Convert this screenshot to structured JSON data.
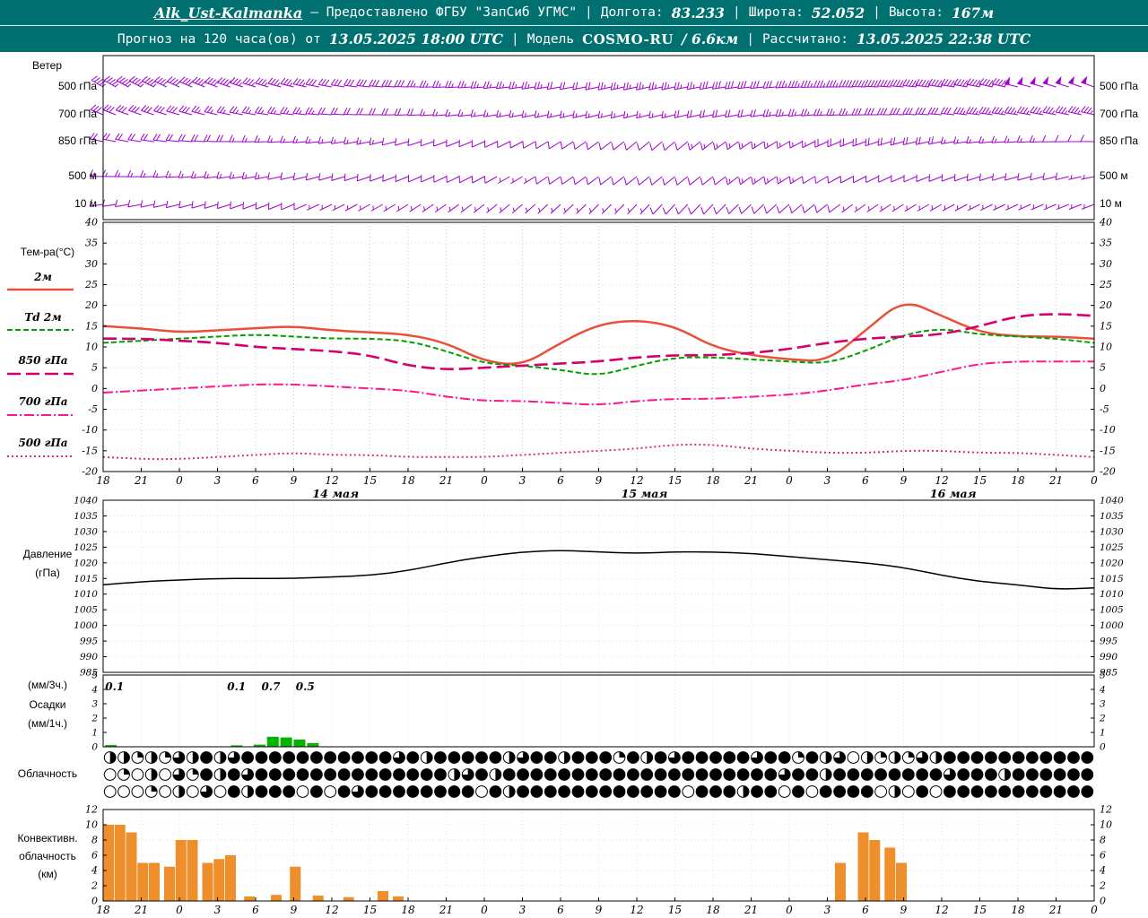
{
  "header": {
    "station": "Alk_Ust-Kalmanka",
    "provider": "— Предоставлено ФГБУ \"ЗапСиб УГМС\"",
    "sep": "|",
    "lon_label": "Долгота:",
    "lon_value": "83.233",
    "lat_label": "Широта:",
    "lat_value": "52.052",
    "alt_label": "Высота:",
    "alt_value": "167м",
    "forecast_label": "Прогноз на 120 часа(ов) от",
    "forecast_time": "13.05.2025 18:00 UTC",
    "model_label": "Модель",
    "model_name": "COSMO-RU",
    "model_res": "/ 6.6км",
    "calc_label": "Рассчитано:",
    "calc_time": "13.05.2025 22:38 UTC"
  },
  "panels": {
    "wind": {
      "title": "Ветер"
    },
    "temp": {
      "title": "Тем-ра(°C)"
    },
    "pressure": {
      "title": "Давление",
      "unit": "(гПа)"
    },
    "precip": {
      "note_3h": "(мм/3ч.)",
      "title": "Осадки",
      "note_1h": "(мм/1ч.)"
    },
    "cloud": {
      "title": "Облачность"
    },
    "convective": {
      "title_1": "Конвективн.",
      "title_2": "облачность",
      "unit": "(км)"
    }
  },
  "chart_data": [
    {
      "id": "wind",
      "type": "wind-barbs",
      "color": "#A000D0",
      "x_step_hours": 3,
      "rows": [
        {
          "level": "500 гПа",
          "dirs": [
            300,
            297,
            294,
            290,
            287,
            284,
            280,
            276,
            272,
            268,
            265,
            262,
            260,
            258,
            257,
            258,
            260,
            263,
            266,
            269,
            272,
            275,
            278,
            281,
            284,
            287,
            290
          ],
          "speeds": [
            45,
            45,
            40,
            40,
            35,
            35,
            30,
            30,
            28,
            26,
            25,
            24,
            22,
            22,
            24,
            26,
            28,
            30,
            33,
            36,
            40,
            42,
            44,
            46,
            48,
            50,
            50
          ]
        },
        {
          "level": "700 гПа",
          "dirs": [
            292,
            289,
            286,
            283,
            280,
            277,
            274,
            271,
            268,
            265,
            262,
            259,
            257,
            256,
            255,
            256,
            258,
            260,
            263,
            266,
            269,
            272,
            275,
            277,
            279,
            281,
            283
          ],
          "speeds": [
            32,
            30,
            28,
            27,
            25,
            24,
            22,
            20,
            18,
            17,
            16,
            15,
            14,
            14,
            15,
            17,
            19,
            21,
            24,
            26,
            28,
            30,
            32,
            33,
            34,
            35,
            35
          ]
        },
        {
          "level": "850 гПа",
          "dirs": [
            282,
            279,
            276,
            272,
            269,
            266,
            262,
            258,
            254,
            250,
            246,
            242,
            238,
            234,
            231,
            230,
            232,
            236,
            240,
            245,
            250,
            255,
            259,
            263,
            266,
            269,
            271
          ],
          "speeds": [
            22,
            21,
            20,
            18,
            17,
            16,
            14,
            13,
            12,
            10,
            9,
            8,
            8,
            9,
            10,
            12,
            13,
            15,
            16,
            18,
            19,
            20,
            18,
            16,
            14,
            12,
            11
          ]
        },
        {
          "level": "500 м",
          "dirs": [
            272,
            269,
            266,
            263,
            260,
            257,
            254,
            251,
            248,
            245,
            242,
            239,
            236,
            234,
            232,
            231,
            232,
            234,
            237,
            240,
            243,
            246,
            249,
            252,
            254,
            256,
            258
          ],
          "speeds": [
            16,
            15,
            15,
            14,
            13,
            12,
            11,
            10,
            9,
            8,
            8,
            7,
            8,
            9,
            10,
            11,
            12,
            13,
            13,
            12,
            11,
            10,
            9,
            9,
            8,
            8,
            7
          ]
        },
        {
          "level": "10 м",
          "dirs": [
            262,
            259,
            256,
            253,
            250,
            247,
            244,
            241,
            238,
            235,
            232,
            229,
            227,
            225,
            224,
            223,
            224,
            226,
            229,
            232,
            235,
            238,
            241,
            243,
            245,
            247,
            249
          ],
          "speeds": [
            10,
            10,
            9,
            9,
            8,
            8,
            7,
            7,
            6,
            6,
            5,
            5,
            5,
            6,
            7,
            8,
            8,
            9,
            9,
            8,
            7,
            7,
            6,
            6,
            5,
            5,
            5
          ]
        }
      ]
    },
    {
      "id": "temp",
      "type": "line",
      "ylim": [
        -20,
        40
      ],
      "ystep": 5,
      "x_labels": [
        "18",
        "21",
        "0",
        "3",
        "6",
        "9",
        "12",
        "15",
        "18",
        "21",
        "0",
        "3",
        "6",
        "9",
        "12",
        "15",
        "18",
        "21",
        "0",
        "3",
        "6",
        "9",
        "12",
        "15",
        "18",
        "21",
        "0"
      ],
      "day_labels": [
        {
          "text": "14 мая",
          "slot": 6.1
        },
        {
          "text": "15 мая",
          "slot": 14.2
        },
        {
          "text": "16 мая",
          "slot": 22.3
        }
      ],
      "series": [
        {
          "name": "2м",
          "color": "#E8503A",
          "width": 2.5,
          "dash": "",
          "values": [
            15,
            14.5,
            13.5,
            14,
            14.5,
            15,
            14,
            13.5,
            13,
            11,
            6.5,
            5.5,
            11,
            15.5,
            16.5,
            15,
            10,
            8,
            7,
            6.5,
            14,
            21.5,
            17.5,
            13.5,
            12.5,
            12.5,
            12
          ]
        },
        {
          "name": "Td 2м",
          "color": "#00A000",
          "width": 2,
          "dash": "6,3",
          "values": [
            11,
            11.5,
            12,
            12.5,
            13,
            12.5,
            12,
            12,
            11.5,
            9,
            6,
            5.5,
            4.5,
            3,
            5.5,
            7.5,
            7.5,
            7,
            6.5,
            6,
            9,
            13,
            14.5,
            13,
            12.5,
            12,
            11
          ]
        },
        {
          "name": "850 гПа",
          "color": "#D4006E",
          "width": 2.6,
          "dash": "15,6",
          "values": [
            12,
            12,
            11.5,
            11,
            10,
            9.5,
            9,
            8,
            5.5,
            4.5,
            5,
            5.5,
            6,
            6.5,
            7.5,
            8,
            8,
            8.5,
            9.5,
            11,
            12,
            12.5,
            13,
            15,
            17.5,
            18,
            17.5
          ]
        },
        {
          "name": "700 гПа",
          "color": "#FF1493",
          "width": 2,
          "dash": "11,3,2,3",
          "values": [
            -1,
            -0.5,
            0,
            0.5,
            1,
            1,
            0.5,
            0,
            -0.5,
            -2,
            -3,
            -3,
            -3.5,
            -4,
            -3,
            -2.5,
            -2.5,
            -2,
            -1.5,
            -0.5,
            1,
            2,
            4,
            6,
            6.5,
            6.5,
            6.5
          ]
        },
        {
          "name": "500 гПа",
          "color": "#E02880",
          "width": 2,
          "dash": "2,3",
          "values": [
            -16.5,
            -17,
            -17,
            -16.5,
            -16,
            -15.5,
            -16,
            -16,
            -16.5,
            -16.5,
            -16.5,
            -16,
            -15.5,
            -15,
            -14.5,
            -13.5,
            -13.5,
            -14.5,
            -15,
            -15.5,
            -15.5,
            -15,
            -15,
            -15.5,
            -15.5,
            -16,
            -16.5
          ]
        }
      ]
    },
    {
      "id": "pressure",
      "type": "line",
      "ylim": [
        985,
        1040
      ],
      "ystep": 5,
      "series": [
        {
          "name": "Давление",
          "color": "#000000",
          "width": 1.5,
          "dash": "",
          "values": [
            1013,
            1014,
            1014.5,
            1015,
            1015,
            1015,
            1015.5,
            1016,
            1017.5,
            1020,
            1022,
            1023.5,
            1024,
            1023.5,
            1023,
            1023.5,
            1023.5,
            1023,
            1022,
            1021,
            1020,
            1018.5,
            1016,
            1014,
            1013,
            1011.5,
            1012
          ]
        }
      ]
    },
    {
      "id": "precip",
      "type": "bar",
      "ylim": [
        0,
        5
      ],
      "ystep": 1,
      "color": "#00B400",
      "bars": [
        {
          "t": 0.05,
          "h": 0.12
        },
        {
          "t": 3.35,
          "h": 0.1
        },
        {
          "t": 3.95,
          "h": 0.15
        },
        {
          "t": 4.3,
          "h": 0.7
        },
        {
          "t": 4.65,
          "h": 0.65
        },
        {
          "t": 5.0,
          "h": 0.5
        },
        {
          "t": 5.35,
          "h": 0.25
        }
      ],
      "labels": [
        {
          "t": 0.3,
          "text": "0.1"
        },
        {
          "t": 3.5,
          "text": "0.1"
        },
        {
          "t": 4.4,
          "text": "0.7"
        },
        {
          "t": 5.3,
          "text": "0.5"
        }
      ]
    },
    {
      "id": "cloud",
      "type": "symbol-rows",
      "symbol": "cloud-cover-circle",
      "octas_scale": 4,
      "rows": [
        "221213242344444444444342444442344244414243444443441423021213244444444444",
        "010203142434444444444444423424444444444444444444434424444444434442444444",
        "000102030424440404344444444042444444444444044424404044440204044444444444"
      ]
    },
    {
      "id": "convective",
      "type": "bar",
      "ylim": [
        0,
        12
      ],
      "ystep": 2,
      "color": "#EE8F2C",
      "bars": [
        {
          "t": 0.0,
          "h": 10
        },
        {
          "t": 0.3,
          "h": 10
        },
        {
          "t": 0.6,
          "h": 9
        },
        {
          "t": 0.9,
          "h": 5
        },
        {
          "t": 1.2,
          "h": 5
        },
        {
          "t": 1.6,
          "h": 4.5
        },
        {
          "t": 1.9,
          "h": 8
        },
        {
          "t": 2.2,
          "h": 8
        },
        {
          "t": 2.6,
          "h": 5
        },
        {
          "t": 2.9,
          "h": 5.5
        },
        {
          "t": 3.2,
          "h": 6
        },
        {
          "t": 3.7,
          "h": 0.6
        },
        {
          "t": 4.4,
          "h": 0.8
        },
        {
          "t": 4.9,
          "h": 4.5
        },
        {
          "t": 5.5,
          "h": 0.7
        },
        {
          "t": 6.3,
          "h": 0.5
        },
        {
          "t": 7.2,
          "h": 1.3
        },
        {
          "t": 7.6,
          "h": 0.6
        },
        {
          "t": 19.2,
          "h": 5
        },
        {
          "t": 19.8,
          "h": 9
        },
        {
          "t": 20.1,
          "h": 8
        },
        {
          "t": 20.5,
          "h": 7
        },
        {
          "t": 20.8,
          "h": 5
        }
      ]
    }
  ]
}
